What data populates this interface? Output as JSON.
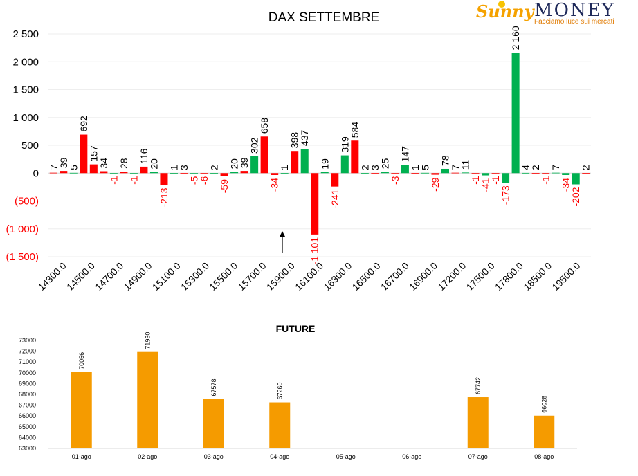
{
  "logo": {
    "sunny": "Sunny",
    "money": "MONEY",
    "tagline": "Facciamo luce sui mercati"
  },
  "chart_data": [
    {
      "type": "bar",
      "title": "DAX SETTEMBRE",
      "ylim": [
        -1500,
        2500
      ],
      "yticks": [
        {
          "value": 2500,
          "label": "2 500"
        },
        {
          "value": 2000,
          "label": "2 000"
        },
        {
          "value": 1500,
          "label": "1 500"
        },
        {
          "value": 1000,
          "label": "1 000"
        },
        {
          "value": 500,
          "label": "500"
        },
        {
          "value": 0,
          "label": "0"
        },
        {
          "value": -500,
          "label": "(500)"
        },
        {
          "value": -1000,
          "label": "(1 000)"
        },
        {
          "value": -1500,
          "label": "(1 500)"
        }
      ],
      "xtick_labels": [
        "14300.0",
        "14500.0",
        "14700.0",
        "14900.0",
        "15100.0",
        "15300.0",
        "15500.0",
        "15700.0",
        "15900.0",
        "16100.0",
        "16300.0",
        "16500.0",
        "16700.0",
        "16900.0",
        "17200.0",
        "17500.0",
        "17800.0",
        "18500.0",
        "19500.0"
      ],
      "grid": true,
      "series_colors": {
        "red": "#ff0000",
        "green": "#00b050",
        "negative_label": "#ff0000",
        "positive_label": "#000000"
      },
      "bars": [
        {
          "value": 7,
          "label": "7",
          "color": "red"
        },
        {
          "value": 39,
          "label": "39",
          "color": "red"
        },
        {
          "value": 5,
          "label": "5",
          "color": "green"
        },
        {
          "value": 692,
          "label": "692",
          "color": "red"
        },
        {
          "value": 157,
          "label": "157",
          "color": "red"
        },
        {
          "value": 34,
          "label": "34",
          "color": "red"
        },
        {
          "value": -1,
          "label": "-1",
          "color": "green"
        },
        {
          "value": 28,
          "label": "28",
          "color": "red"
        },
        {
          "value": -1,
          "label": "-1",
          "color": "green"
        },
        {
          "value": 116,
          "label": "116",
          "color": "red"
        },
        {
          "value": 20,
          "label": "20",
          "color": "green"
        },
        {
          "value": -213,
          "label": "-213",
          "color": "red"
        },
        {
          "value": 1,
          "label": "1",
          "color": "green"
        },
        {
          "value": 3,
          "label": "3",
          "color": "red"
        },
        {
          "value": -5,
          "label": "-5",
          "color": "green"
        },
        {
          "value": -6,
          "label": "-6",
          "color": "red"
        },
        {
          "value": 2,
          "label": "2",
          "color": "green"
        },
        {
          "value": -59,
          "label": "-59",
          "color": "red"
        },
        {
          "value": 20,
          "label": "20",
          "color": "green"
        },
        {
          "value": 39,
          "label": "39",
          "color": "red"
        },
        {
          "value": 302,
          "label": "302",
          "color": "green"
        },
        {
          "value": 658,
          "label": "658",
          "color": "red"
        },
        {
          "value": -34,
          "label": "-34",
          "color": "red"
        },
        {
          "value": 1,
          "label": "1",
          "color": "green"
        },
        {
          "value": 398,
          "label": "398",
          "color": "red"
        },
        {
          "value": 437,
          "label": "437",
          "color": "green"
        },
        {
          "value": -1101,
          "label": "-1 101",
          "color": "red"
        },
        {
          "value": 19,
          "label": "19",
          "color": "green"
        },
        {
          "value": -241,
          "label": "-241",
          "color": "red"
        },
        {
          "value": 319,
          "label": "319",
          "color": "green"
        },
        {
          "value": 584,
          "label": "584",
          "color": "red"
        },
        {
          "value": 2,
          "label": "2",
          "color": "green"
        },
        {
          "value": 3,
          "label": "3",
          "color": "red"
        },
        {
          "value": 25,
          "label": "25",
          "color": "green"
        },
        {
          "value": -3,
          "label": "-3",
          "color": "red"
        },
        {
          "value": 147,
          "label": "147",
          "color": "green"
        },
        {
          "value": 1,
          "label": "1",
          "color": "red"
        },
        {
          "value": 5,
          "label": "5",
          "color": "green"
        },
        {
          "value": -29,
          "label": "-29",
          "color": "red"
        },
        {
          "value": 78,
          "label": "78",
          "color": "green"
        },
        {
          "value": 7,
          "label": "7",
          "color": "red"
        },
        {
          "value": 11,
          "label": "11",
          "color": "green"
        },
        {
          "value": -1,
          "label": "-1",
          "color": "red"
        },
        {
          "value": -41,
          "label": "-41",
          "color": "green"
        },
        {
          "value": -1,
          "label": "-1",
          "color": "red"
        },
        {
          "value": -173,
          "label": "-173",
          "color": "green"
        },
        {
          "value": 2160,
          "label": "2 160",
          "color": "green"
        },
        {
          "value": 4,
          "label": "4",
          "color": "green"
        },
        {
          "value": 2,
          "label": "2",
          "color": "red"
        },
        {
          "value": -1,
          "label": "-1",
          "color": "red"
        },
        {
          "value": 7,
          "label": "7",
          "color": "green"
        },
        {
          "value": -34,
          "label": "-34",
          "color": "green"
        },
        {
          "value": -202,
          "label": "-202",
          "color": "green"
        },
        {
          "value": 2,
          "label": "2",
          "color": "red"
        }
      ]
    },
    {
      "type": "bar",
      "title": "FUTURE",
      "ylim": [
        63000,
        73000
      ],
      "yticks": [
        {
          "value": 73000,
          "label": "73000"
        },
        {
          "value": 72000,
          "label": "72000"
        },
        {
          "value": 71000,
          "label": "71000"
        },
        {
          "value": 70000,
          "label": "70000"
        },
        {
          "value": 69000,
          "label": "69000"
        },
        {
          "value": 68000,
          "label": "68000"
        },
        {
          "value": 67000,
          "label": "67000"
        },
        {
          "value": 66000,
          "label": "66000"
        },
        {
          "value": 65000,
          "label": "65000"
        },
        {
          "value": 64000,
          "label": "64000"
        },
        {
          "value": 63000,
          "label": "63000"
        }
      ],
      "categories": [
        "01-ago",
        "02-ago",
        "03-ago",
        "04-ago",
        "05-ago",
        "06-ago",
        "07-ago",
        "08-ago"
      ],
      "values": [
        70056,
        71930,
        67578,
        67260,
        null,
        null,
        67742,
        66028
      ],
      "value_labels": [
        "70056",
        "71930",
        "67578",
        "67260",
        "",
        "",
        "67742",
        "66028"
      ],
      "color": "#f59b00"
    }
  ]
}
